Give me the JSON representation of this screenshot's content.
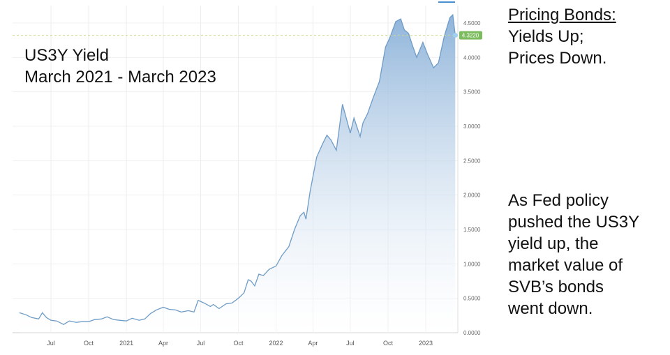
{
  "title_lines": [
    "US3Y Yield",
    "March 2021 - March 2023"
  ],
  "side_heading": "Pricing Bonds:",
  "side_heading_lines": [
    "Yields Up;",
    "Prices Down."
  ],
  "side_body_lines": [
    "As Fed policy",
    "pushed the US3Y",
    "yield up, the",
    "market value of",
    "SVB’s bonds",
    "went down."
  ],
  "chart_data": {
    "type": "area",
    "title": "US3Y Yield March 2021 - March 2023",
    "xlabel": "",
    "ylabel": "",
    "ylim": [
      0,
      4.7
    ],
    "grid": true,
    "line_color": "#6f9cc6",
    "fill_color": "#8fb4da",
    "current_value_label": "4.3220",
    "current_value": 4.322,
    "current_label_color": "#7dbb5f",
    "x_ticks": [
      {
        "date": "2020-07-01",
        "label": "Jul"
      },
      {
        "date": "2020-10-01",
        "label": "Oct"
      },
      {
        "date": "2021-01-01",
        "label": "2021"
      },
      {
        "date": "2021-04-01",
        "label": "Apr"
      },
      {
        "date": "2021-07-01",
        "label": "Jul"
      },
      {
        "date": "2021-10-01",
        "label": "Oct"
      },
      {
        "date": "2022-01-01",
        "label": "2022"
      },
      {
        "date": "2022-04-01",
        "label": "Apr"
      },
      {
        "date": "2022-07-01",
        "label": "Jul"
      },
      {
        "date": "2022-10-01",
        "label": "Oct"
      },
      {
        "date": "2023-01-01",
        "label": "2023"
      }
    ],
    "y_ticks": [
      "0.0000",
      "0.5000",
      "1.0000",
      "1.5000",
      "2.0000",
      "2.5000",
      "3.0000",
      "3.5000",
      "4.0000",
      "4.5000"
    ],
    "points": [
      [
        "2020-04-15",
        0.29
      ],
      [
        "2020-05-01",
        0.26
      ],
      [
        "2020-05-15",
        0.22
      ],
      [
        "2020-06-01",
        0.2
      ],
      [
        "2020-06-10",
        0.29
      ],
      [
        "2020-06-20",
        0.22
      ],
      [
        "2020-07-01",
        0.18
      ],
      [
        "2020-07-15",
        0.17
      ],
      [
        "2020-08-01",
        0.12
      ],
      [
        "2020-08-15",
        0.17
      ],
      [
        "2020-09-01",
        0.15
      ],
      [
        "2020-09-15",
        0.16
      ],
      [
        "2020-10-01",
        0.16
      ],
      [
        "2020-10-15",
        0.19
      ],
      [
        "2020-11-01",
        0.2
      ],
      [
        "2020-11-15",
        0.23
      ],
      [
        "2020-12-01",
        0.19
      ],
      [
        "2020-12-15",
        0.18
      ],
      [
        "2021-01-01",
        0.17
      ],
      [
        "2021-01-15",
        0.21
      ],
      [
        "2021-02-01",
        0.18
      ],
      [
        "2021-02-15",
        0.2
      ],
      [
        "2021-03-01",
        0.28
      ],
      [
        "2021-03-15",
        0.33
      ],
      [
        "2021-04-01",
        0.37
      ],
      [
        "2021-04-15",
        0.34
      ],
      [
        "2021-05-01",
        0.33
      ],
      [
        "2021-05-15",
        0.3
      ],
      [
        "2021-06-01",
        0.32
      ],
      [
        "2021-06-15",
        0.3
      ],
      [
        "2021-06-25",
        0.47
      ],
      [
        "2021-07-10",
        0.43
      ],
      [
        "2021-07-25",
        0.38
      ],
      [
        "2021-08-01",
        0.41
      ],
      [
        "2021-08-15",
        0.35
      ],
      [
        "2021-09-01",
        0.42
      ],
      [
        "2021-09-15",
        0.43
      ],
      [
        "2021-10-01",
        0.5
      ],
      [
        "2021-10-15",
        0.58
      ],
      [
        "2021-10-25",
        0.77
      ],
      [
        "2021-11-01",
        0.75
      ],
      [
        "2021-11-10",
        0.68
      ],
      [
        "2021-11-20",
        0.85
      ],
      [
        "2021-12-01",
        0.83
      ],
      [
        "2021-12-15",
        0.92
      ],
      [
        "2022-01-01",
        0.97
      ],
      [
        "2022-01-15",
        1.12
      ],
      [
        "2022-02-01",
        1.25
      ],
      [
        "2022-02-15",
        1.5
      ],
      [
        "2022-03-01",
        1.7
      ],
      [
        "2022-03-10",
        1.75
      ],
      [
        "2022-03-15",
        1.65
      ],
      [
        "2022-03-25",
        2.05
      ],
      [
        "2022-04-10",
        2.55
      ],
      [
        "2022-04-25",
        2.75
      ],
      [
        "2022-05-05",
        2.87
      ],
      [
        "2022-05-15",
        2.8
      ],
      [
        "2022-05-28",
        2.65
      ],
      [
        "2022-06-12",
        3.32
      ],
      [
        "2022-06-22",
        3.1
      ],
      [
        "2022-07-01",
        2.9
      ],
      [
        "2022-07-10",
        3.12
      ],
      [
        "2022-07-25",
        2.85
      ],
      [
        "2022-08-01",
        3.05
      ],
      [
        "2022-08-12",
        3.18
      ],
      [
        "2022-08-25",
        3.4
      ],
      [
        "2022-09-10",
        3.65
      ],
      [
        "2022-09-25",
        4.15
      ],
      [
        "2022-10-05",
        4.28
      ],
      [
        "2022-10-20",
        4.52
      ],
      [
        "2022-11-01",
        4.56
      ],
      [
        "2022-11-10",
        4.4
      ],
      [
        "2022-11-20",
        4.35
      ],
      [
        "2022-12-01",
        4.15
      ],
      [
        "2022-12-10",
        4.0
      ],
      [
        "2022-12-25",
        4.22
      ],
      [
        "2023-01-05",
        4.05
      ],
      [
        "2023-01-20",
        3.85
      ],
      [
        "2023-02-01",
        3.92
      ],
      [
        "2023-02-15",
        4.3
      ],
      [
        "2023-03-01",
        4.58
      ],
      [
        "2023-03-08",
        4.62
      ],
      [
        "2023-03-14",
        4.32
      ]
    ]
  }
}
